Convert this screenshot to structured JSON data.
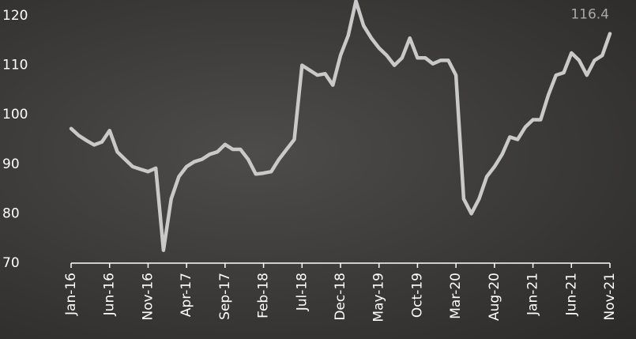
{
  "chart_data": {
    "type": "line",
    "categories": [
      "Jan-16",
      null,
      null,
      null,
      null,
      "Jun-16",
      null,
      null,
      null,
      null,
      "Nov-16",
      null,
      null,
      null,
      null,
      "Apr-17",
      null,
      null,
      null,
      null,
      "Sep-17",
      null,
      null,
      null,
      null,
      "Feb-18",
      null,
      null,
      null,
      null,
      "Jul-18",
      null,
      null,
      null,
      null,
      "Dec-18",
      null,
      null,
      null,
      null,
      "May-19",
      null,
      null,
      null,
      null,
      "Oct-19",
      null,
      null,
      null,
      null,
      "Mar-20",
      null,
      null,
      null,
      null,
      "Aug-20",
      null,
      null,
      null,
      null,
      "Jan-21",
      null,
      null,
      null,
      null,
      "Jun-21",
      null,
      null,
      null,
      null,
      "Nov-21"
    ],
    "values": [
      97.2,
      95.8,
      94.8,
      93.9,
      94.5,
      96.8,
      92.5,
      91,
      89.5,
      89,
      88.5,
      89.2,
      72.6,
      83,
      87.5,
      89.5,
      90.5,
      91,
      92,
      92.5,
      94,
      93,
      93,
      91,
      88,
      88.2,
      88.5,
      91,
      93,
      95,
      110,
      109,
      108,
      108.3,
      106,
      112,
      116,
      123,
      118,
      115.5,
      113.5,
      112,
      110,
      111.5,
      115.5,
      111.5,
      111.5,
      110.3,
      111,
      111,
      108,
      83,
      80,
      83,
      87.5,
      89.5,
      92,
      95.5,
      95,
      97.5,
      99,
      99,
      104,
      108,
      108.5,
      112.5,
      111,
      108,
      111,
      112,
      116.4
    ],
    "color": "#c9c9c9",
    "ylim": [
      70,
      123.2
    ],
    "yticks": [
      70,
      80,
      90,
      100,
      110,
      120
    ],
    "grid": false
  }
}
